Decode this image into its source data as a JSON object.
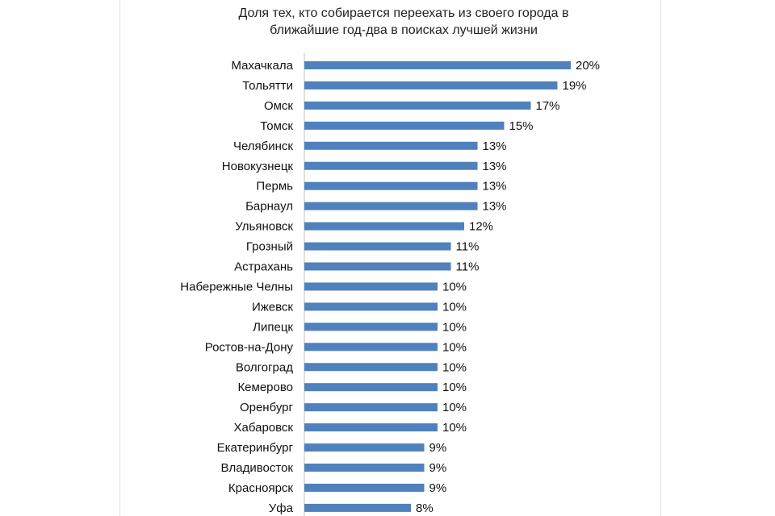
{
  "chart_data": {
    "type": "bar",
    "orientation": "horizontal",
    "title": "Доля тех, кто собирается переехать из своего города в\nближайшие год-два в поисках лучшей жизни",
    "categories": [
      "Махачкала",
      "Тольятти",
      "Омск",
      "Томск",
      "Челябинск",
      "Новокузнецк",
      "Пермь",
      "Барнаул",
      "Ульяновск",
      "Грозный",
      "Астрахань",
      "Набережные Челны",
      "Ижевск",
      "Липецк",
      "Ростов-на-Дону",
      "Волгоград",
      "Кемерово",
      "Оренбург",
      "Хабаровск",
      "Екатеринбург",
      "Владивосток",
      "Красноярск",
      "Уфа"
    ],
    "values": [
      20,
      19,
      17,
      15,
      13,
      13,
      13,
      13,
      12,
      11,
      11,
      10,
      10,
      10,
      10,
      10,
      10,
      10,
      10,
      9,
      9,
      9,
      8
    ],
    "value_labels": [
      "20%",
      "19%",
      "17%",
      "15%",
      "13%",
      "13%",
      "13%",
      "13%",
      "12%",
      "11%",
      "11%",
      "10%",
      "10%",
      "10%",
      "10%",
      "10%",
      "10%",
      "10%",
      "10%",
      "9%",
      "9%",
      "9%",
      "8%"
    ],
    "bar_color": "#4f81bd",
    "grid": false,
    "legend": "none"
  }
}
